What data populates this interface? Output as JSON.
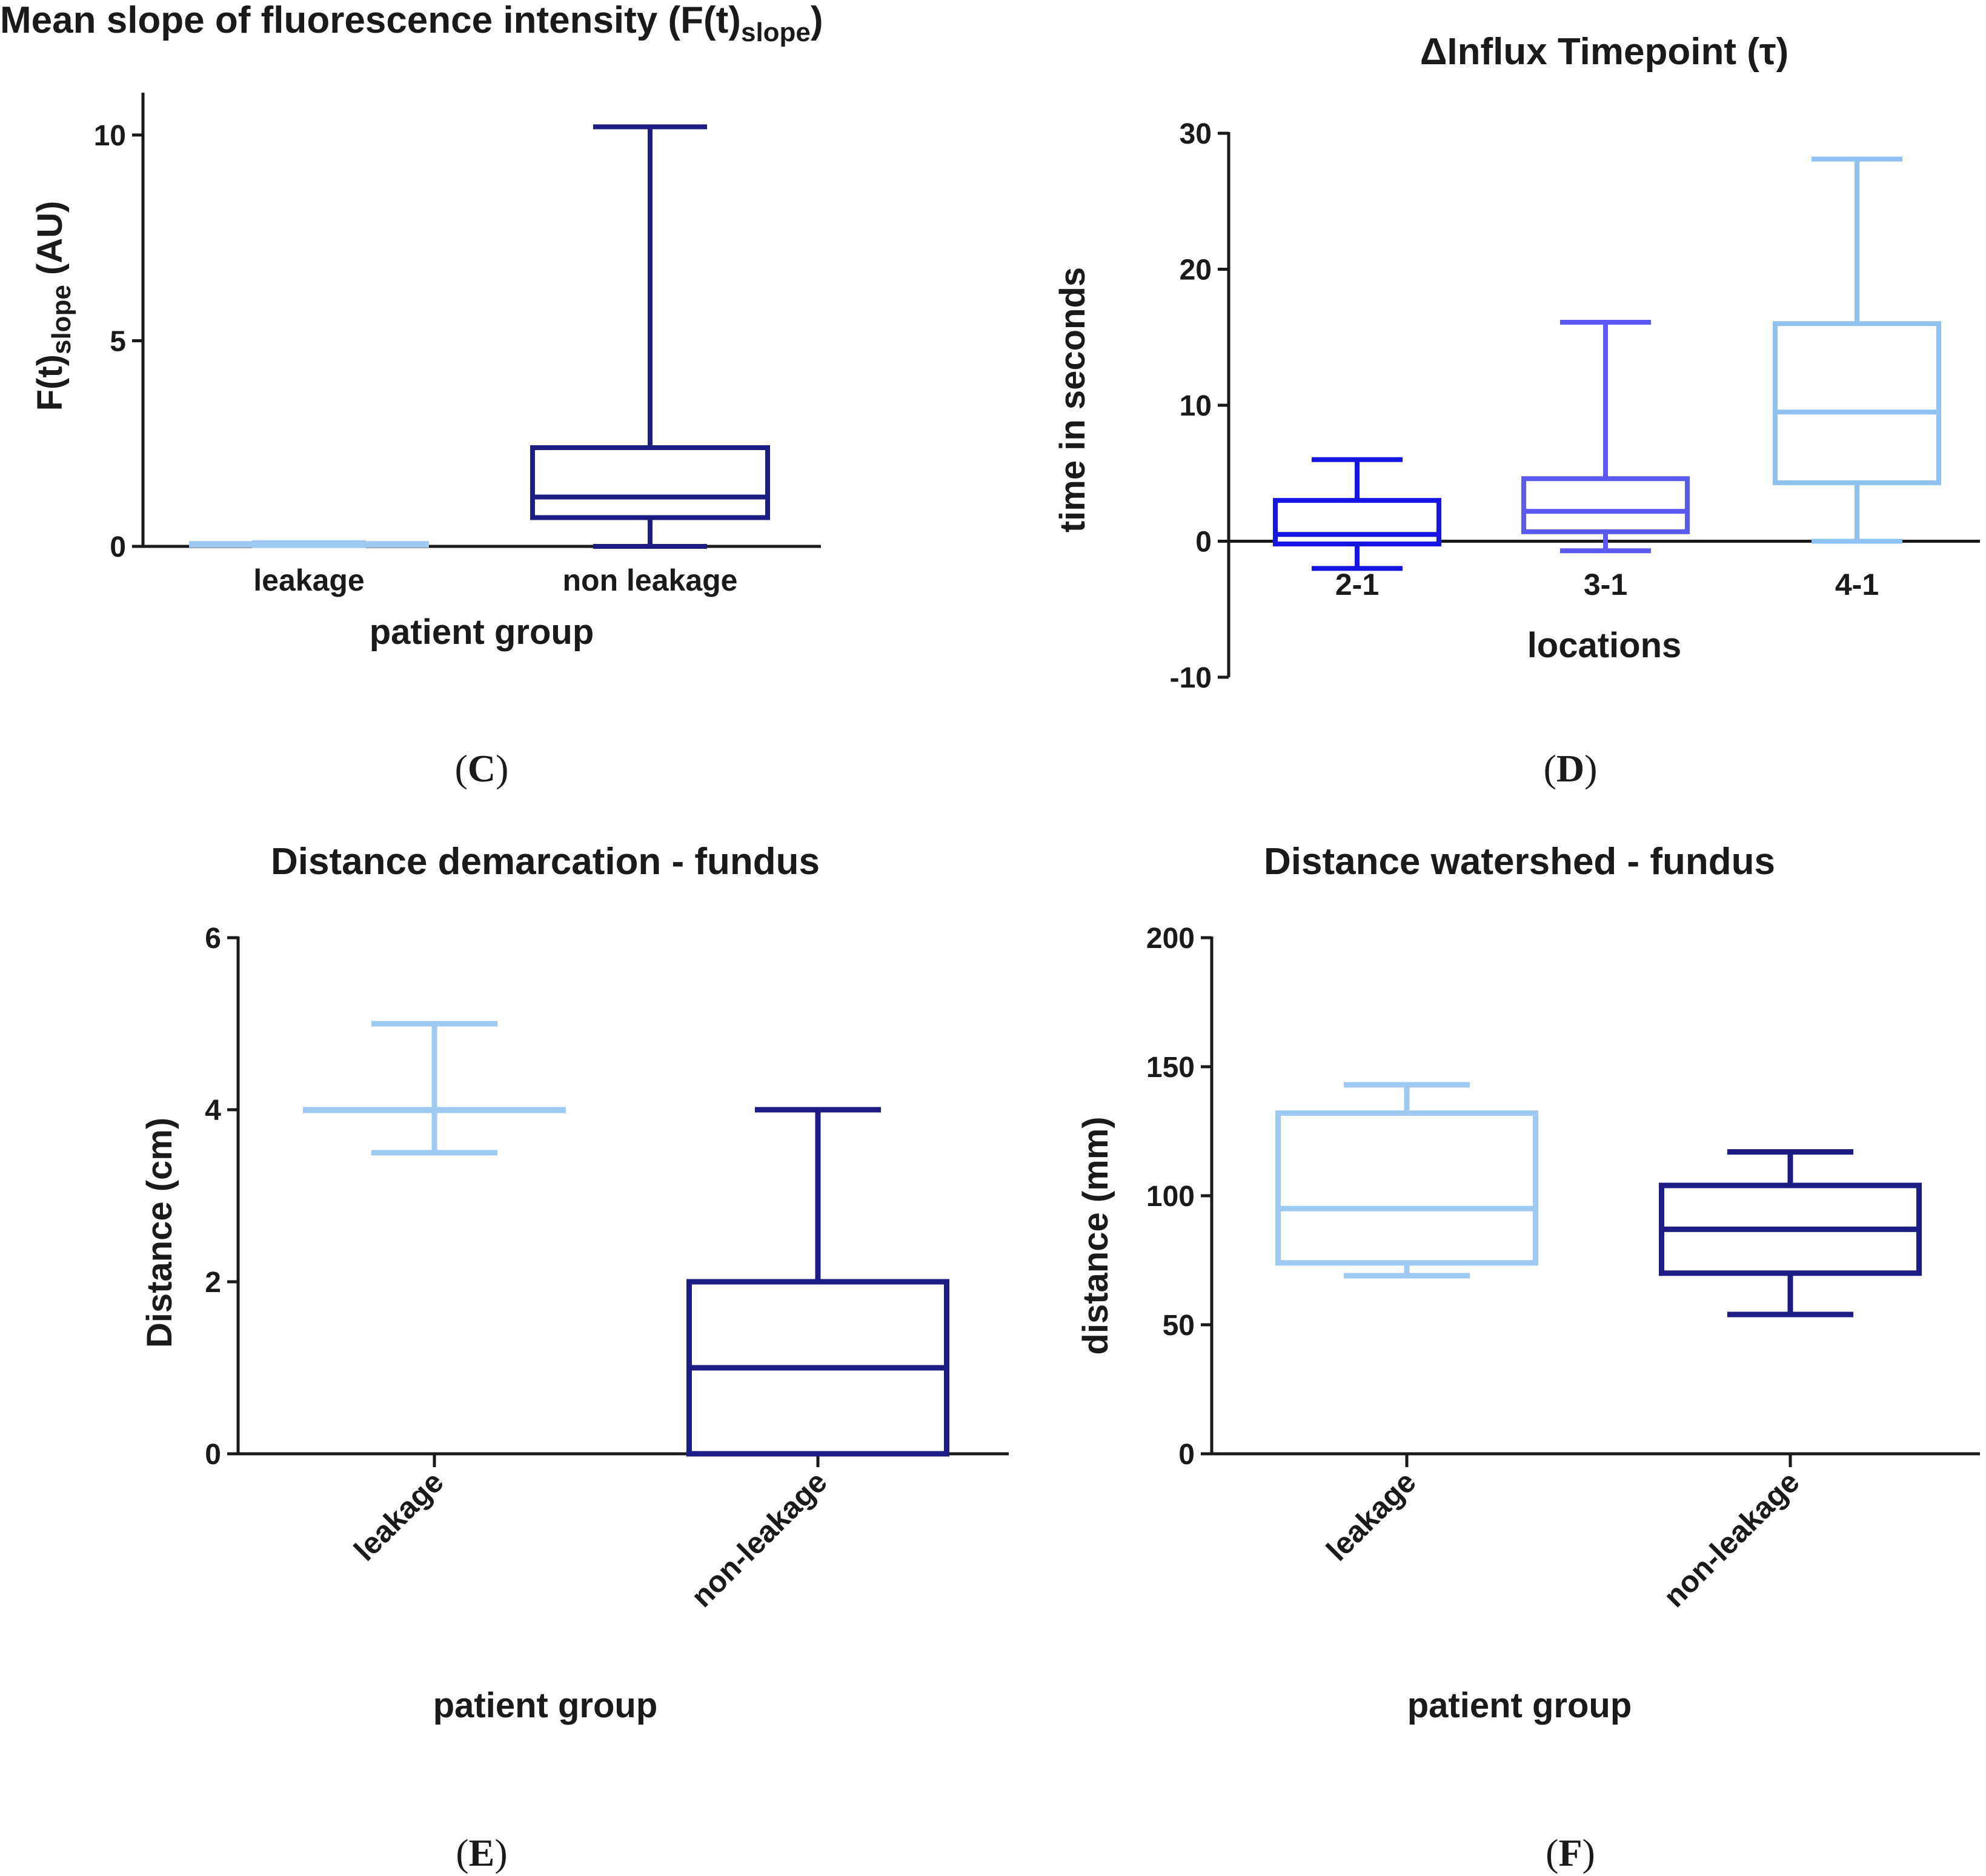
{
  "chart_data": [
    {
      "id": "C",
      "type": "box",
      "panel_label": "C",
      "title_main": "Mean slope of fluorescence intensity (F(t)",
      "title_sub": "slope",
      "title_end": ")",
      "ylabel_main": "F(t)",
      "ylabel_sub": "slope",
      "ylabel_end": " (AU)",
      "xlabel": "patient group",
      "ylim": [
        0,
        11
      ],
      "yticks": [
        0,
        5,
        10
      ],
      "categories": [
        "leakage",
        "non leakage"
      ],
      "boxes": [
        {
          "category": "leakage",
          "min": 0.02,
          "q1": 0.03,
          "median": 0.05,
          "q3": 0.07,
          "max": 0.09,
          "color": "#9ec9f0"
        },
        {
          "category": "non leakage",
          "min": 0.0,
          "q1": 0.7,
          "median": 1.2,
          "q3": 2.4,
          "max": 10.2,
          "color": "#1c1c84"
        }
      ]
    },
    {
      "id": "D",
      "type": "box",
      "panel_label": "D",
      "title": "ΔInflux Timepoint (τ)",
      "ylabel": "time in seconds",
      "xlabel": "locations",
      "ylim": [
        -10,
        30
      ],
      "yticks": [
        -10,
        0,
        10,
        20,
        30
      ],
      "categories": [
        "2-1",
        "3-1",
        "4-1"
      ],
      "boxes": [
        {
          "category": "2-1",
          "min": -2,
          "q1": -0.2,
          "median": 0.5,
          "q3": 3.0,
          "max": 6.0,
          "color": "#1515e6"
        },
        {
          "category": "3-1",
          "min": -0.7,
          "q1": 0.7,
          "median": 2.2,
          "q3": 4.6,
          "max": 16.1,
          "color": "#5a5af0"
        },
        {
          "category": "4-1",
          "min": 0.0,
          "q1": 4.3,
          "median": 9.5,
          "q3": 16.0,
          "max": 28.1,
          "color": "#8fc1f1"
        }
      ]
    },
    {
      "id": "E",
      "type": "box",
      "panel_label": "E",
      "title": "Distance demarcation - fundus",
      "ylabel": "Distance  (cm)",
      "xlabel": "patient group",
      "ylim": [
        0,
        6
      ],
      "yticks": [
        0,
        2,
        4,
        6
      ],
      "categories": [
        "leakage",
        "non-leakage"
      ],
      "boxes": [
        {
          "category": "leakage",
          "min": 3.5,
          "q1": 4.0,
          "median": 4.0,
          "q3": 4.0,
          "max": 5.0,
          "color": "#9ec9f0"
        },
        {
          "category": "non-leakage",
          "min": 0.0,
          "q1": 0.0,
          "median": 1.0,
          "q3": 2.0,
          "max": 4.0,
          "color": "#1c1c84"
        }
      ]
    },
    {
      "id": "F",
      "type": "box",
      "panel_label": "F",
      "title": "Distance watershed - fundus",
      "ylabel": "distance (mm)",
      "xlabel": "patient group",
      "ylim": [
        0,
        200
      ],
      "yticks": [
        0,
        50,
        100,
        150,
        200
      ],
      "categories": [
        "leakage",
        "non-leakage"
      ],
      "boxes": [
        {
          "category": "leakage",
          "min": 69,
          "q1": 74,
          "median": 95,
          "q3": 132,
          "max": 143,
          "color": "#9ec9f0"
        },
        {
          "category": "non-leakage",
          "min": 54,
          "q1": 70,
          "median": 87,
          "q3": 104,
          "max": 117,
          "color": "#1c1c84"
        }
      ]
    }
  ]
}
